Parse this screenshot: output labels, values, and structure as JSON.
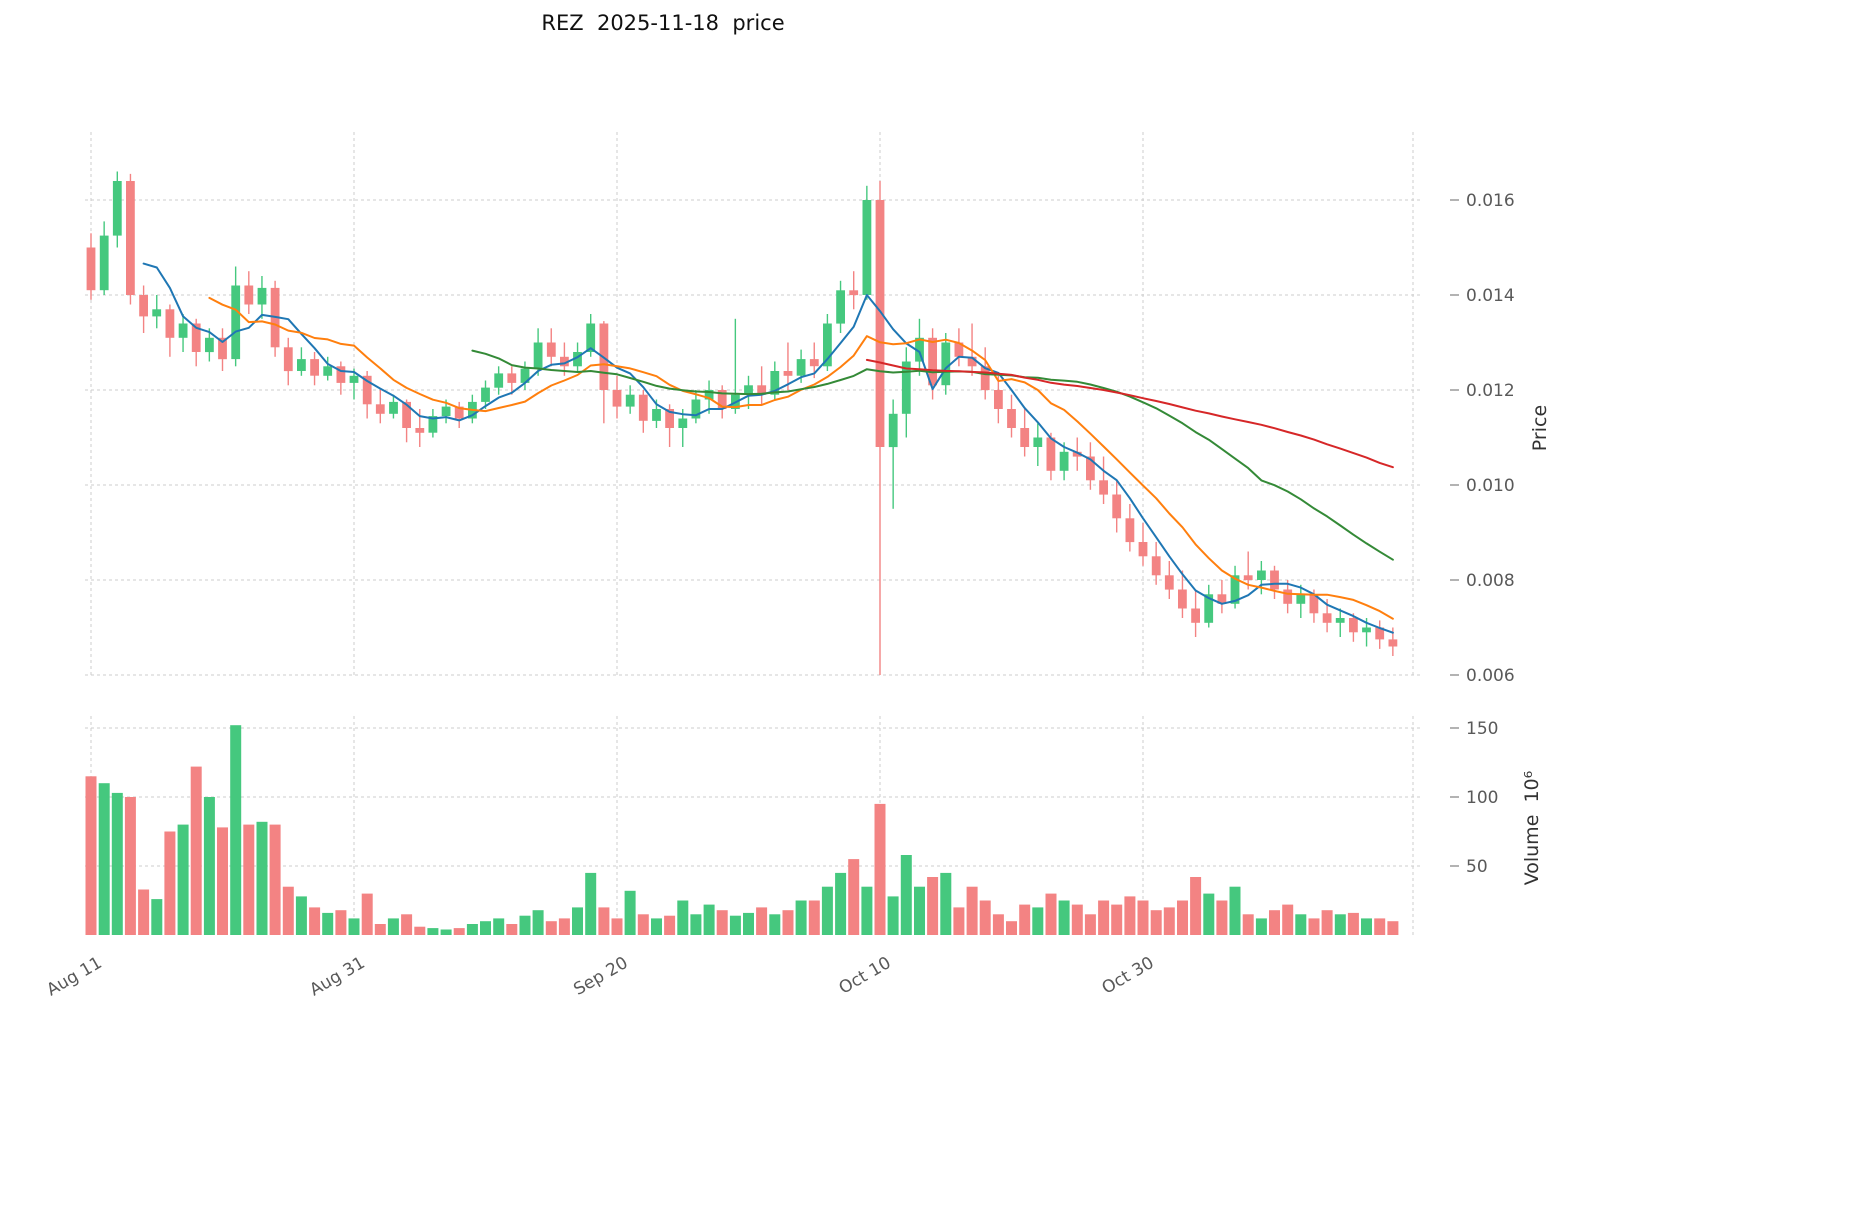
{
  "chart_data": {
    "type": "candlestick",
    "title": "REZ  2025-11-18  price",
    "ylabel": "Price",
    "ylabel_volume": "Volume  10⁶",
    "grid": true,
    "legend": "none",
    "x_tick_labels": [
      "Aug 11",
      "Aug 31",
      "Sep 20",
      "Oct 10",
      "Oct 30"
    ],
    "x_tick_dates": [
      "2025-08-11",
      "2025-08-31",
      "2025-09-20",
      "2025-10-10",
      "2025-10-30"
    ],
    "price_axis": {
      "ticks": [
        0.006,
        0.008,
        0.01,
        0.012,
        0.014,
        0.016
      ],
      "range": [
        0.0055,
        0.0172
      ]
    },
    "volume_axis": {
      "ticks": [
        50,
        100,
        150
      ],
      "unit": "10^6",
      "range": [
        0,
        160
      ]
    },
    "colors": {
      "up": "#45c87e",
      "down": "#f38383",
      "ma5": "#1f77b4",
      "ma10": "#ff7f0e",
      "ma30": "#348a37",
      "ma60": "#d62728",
      "grid": "#cccccc",
      "tick_text": "#595959",
      "title_text": "#111111"
    },
    "moving_averages": [
      {
        "name": "ma5",
        "period": 5
      },
      {
        "name": "ma10",
        "period": 10
      },
      {
        "name": "ma30",
        "period": 30
      },
      {
        "name": "ma60",
        "period": 60
      }
    ],
    "candles": [
      {
        "date": "2025-08-11",
        "open": 0.015,
        "high": 0.0153,
        "low": 0.0139,
        "close": 0.0141,
        "volume": 115
      },
      {
        "date": "2025-08-12",
        "open": 0.0141,
        "high": 0.01555,
        "low": 0.014,
        "close": 0.01525,
        "volume": 110
      },
      {
        "date": "2025-08-13",
        "open": 0.01525,
        "high": 0.0166,
        "low": 0.015,
        "close": 0.0164,
        "volume": 103
      },
      {
        "date": "2025-08-14",
        "open": 0.0164,
        "high": 0.01655,
        "low": 0.0138,
        "close": 0.014,
        "volume": 100
      },
      {
        "date": "2025-08-15",
        "open": 0.014,
        "high": 0.0142,
        "low": 0.0132,
        "close": 0.01355,
        "volume": 33
      },
      {
        "date": "2025-08-16",
        "open": 0.01355,
        "high": 0.014,
        "low": 0.0133,
        "close": 0.0137,
        "volume": 26
      },
      {
        "date": "2025-08-17",
        "open": 0.0137,
        "high": 0.0138,
        "low": 0.0127,
        "close": 0.0131,
        "volume": 75
      },
      {
        "date": "2025-08-18",
        "open": 0.0131,
        "high": 0.0136,
        "low": 0.0128,
        "close": 0.0134,
        "volume": 80
      },
      {
        "date": "2025-08-19",
        "open": 0.0134,
        "high": 0.0135,
        "low": 0.0125,
        "close": 0.0128,
        "volume": 122
      },
      {
        "date": "2025-08-20",
        "open": 0.0128,
        "high": 0.0133,
        "low": 0.0126,
        "close": 0.0131,
        "volume": 100
      },
      {
        "date": "2025-08-21",
        "open": 0.0131,
        "high": 0.0133,
        "low": 0.0124,
        "close": 0.01265,
        "volume": 78
      },
      {
        "date": "2025-08-22",
        "open": 0.01265,
        "high": 0.0146,
        "low": 0.0125,
        "close": 0.0142,
        "volume": 152
      },
      {
        "date": "2025-08-23",
        "open": 0.0142,
        "high": 0.0145,
        "low": 0.0136,
        "close": 0.0138,
        "volume": 80
      },
      {
        "date": "2025-08-24",
        "open": 0.0138,
        "high": 0.0144,
        "low": 0.0135,
        "close": 0.01415,
        "volume": 82
      },
      {
        "date": "2025-08-25",
        "open": 0.01415,
        "high": 0.0143,
        "low": 0.0127,
        "close": 0.0129,
        "volume": 80
      },
      {
        "date": "2025-08-26",
        "open": 0.0129,
        "high": 0.0131,
        "low": 0.0121,
        "close": 0.0124,
        "volume": 35
      },
      {
        "date": "2025-08-27",
        "open": 0.0124,
        "high": 0.0129,
        "low": 0.0123,
        "close": 0.01265,
        "volume": 28
      },
      {
        "date": "2025-08-28",
        "open": 0.01265,
        "high": 0.0128,
        "low": 0.0121,
        "close": 0.0123,
        "volume": 20
      },
      {
        "date": "2025-08-29",
        "open": 0.0123,
        "high": 0.0127,
        "low": 0.0122,
        "close": 0.0125,
        "volume": 16
      },
      {
        "date": "2025-08-30",
        "open": 0.0125,
        "high": 0.0126,
        "low": 0.0119,
        "close": 0.01215,
        "volume": 18
      },
      {
        "date": "2025-08-31",
        "open": 0.01215,
        "high": 0.01245,
        "low": 0.0118,
        "close": 0.0123,
        "volume": 12
      },
      {
        "date": "2025-09-01",
        "open": 0.0123,
        "high": 0.0124,
        "low": 0.0114,
        "close": 0.0117,
        "volume": 30
      },
      {
        "date": "2025-09-02",
        "open": 0.0117,
        "high": 0.012,
        "low": 0.0113,
        "close": 0.0115,
        "volume": 8
      },
      {
        "date": "2025-09-03",
        "open": 0.0115,
        "high": 0.0119,
        "low": 0.0114,
        "close": 0.01175,
        "volume": 12
      },
      {
        "date": "2025-09-04",
        "open": 0.01175,
        "high": 0.0118,
        "low": 0.0109,
        "close": 0.0112,
        "volume": 15
      },
      {
        "date": "2025-09-05",
        "open": 0.0112,
        "high": 0.0116,
        "low": 0.0108,
        "close": 0.0111,
        "volume": 6
      },
      {
        "date": "2025-09-06",
        "open": 0.0111,
        "high": 0.0116,
        "low": 0.011,
        "close": 0.01145,
        "volume": 5
      },
      {
        "date": "2025-09-07",
        "open": 0.01145,
        "high": 0.0118,
        "low": 0.0113,
        "close": 0.01165,
        "volume": 4
      },
      {
        "date": "2025-09-08",
        "open": 0.01165,
        "high": 0.01175,
        "low": 0.0112,
        "close": 0.0114,
        "volume": 5
      },
      {
        "date": "2025-09-09",
        "open": 0.0114,
        "high": 0.0119,
        "low": 0.0113,
        "close": 0.01175,
        "volume": 8
      },
      {
        "date": "2025-09-10",
        "open": 0.01175,
        "high": 0.0122,
        "low": 0.0116,
        "close": 0.01205,
        "volume": 10
      },
      {
        "date": "2025-09-11",
        "open": 0.01205,
        "high": 0.0125,
        "low": 0.0119,
        "close": 0.01235,
        "volume": 12
      },
      {
        "date": "2025-09-12",
        "open": 0.01235,
        "high": 0.0125,
        "low": 0.0119,
        "close": 0.01215,
        "volume": 8
      },
      {
        "date": "2025-09-13",
        "open": 0.01215,
        "high": 0.0126,
        "low": 0.012,
        "close": 0.01245,
        "volume": 14
      },
      {
        "date": "2025-09-14",
        "open": 0.01245,
        "high": 0.0133,
        "low": 0.0123,
        "close": 0.013,
        "volume": 18
      },
      {
        "date": "2025-09-15",
        "open": 0.013,
        "high": 0.0133,
        "low": 0.0125,
        "close": 0.0127,
        "volume": 10
      },
      {
        "date": "2025-09-16",
        "open": 0.0127,
        "high": 0.013,
        "low": 0.0123,
        "close": 0.0125,
        "volume": 12
      },
      {
        "date": "2025-09-17",
        "open": 0.0125,
        "high": 0.013,
        "low": 0.0124,
        "close": 0.0128,
        "volume": 20
      },
      {
        "date": "2025-09-18",
        "open": 0.0128,
        "high": 0.0136,
        "low": 0.0127,
        "close": 0.0134,
        "volume": 45
      },
      {
        "date": "2025-09-19",
        "open": 0.0134,
        "high": 0.01345,
        "low": 0.0113,
        "close": 0.012,
        "volume": 20
      },
      {
        "date": "2025-09-20",
        "open": 0.012,
        "high": 0.0123,
        "low": 0.0114,
        "close": 0.01165,
        "volume": 12
      },
      {
        "date": "2025-09-21",
        "open": 0.01165,
        "high": 0.0121,
        "low": 0.0115,
        "close": 0.0119,
        "volume": 32
      },
      {
        "date": "2025-09-22",
        "open": 0.0119,
        "high": 0.012,
        "low": 0.0111,
        "close": 0.01135,
        "volume": 15
      },
      {
        "date": "2025-09-23",
        "open": 0.01135,
        "high": 0.0118,
        "low": 0.0112,
        "close": 0.0116,
        "volume": 12
      },
      {
        "date": "2025-09-24",
        "open": 0.0116,
        "high": 0.0117,
        "low": 0.0108,
        "close": 0.0112,
        "volume": 14
      },
      {
        "date": "2025-09-25",
        "open": 0.0112,
        "high": 0.0116,
        "low": 0.0108,
        "close": 0.0114,
        "volume": 25
      },
      {
        "date": "2025-09-26",
        "open": 0.0114,
        "high": 0.012,
        "low": 0.0113,
        "close": 0.0118,
        "volume": 15
      },
      {
        "date": "2025-09-27",
        "open": 0.0118,
        "high": 0.0122,
        "low": 0.0115,
        "close": 0.012,
        "volume": 22
      },
      {
        "date": "2025-09-28",
        "open": 0.012,
        "high": 0.0121,
        "low": 0.0114,
        "close": 0.0116,
        "volume": 18
      },
      {
        "date": "2025-09-29",
        "open": 0.0116,
        "high": 0.0135,
        "low": 0.0115,
        "close": 0.0119,
        "volume": 14
      },
      {
        "date": "2025-09-30",
        "open": 0.0119,
        "high": 0.0123,
        "low": 0.0116,
        "close": 0.0121,
        "volume": 16
      },
      {
        "date": "2025-10-01",
        "open": 0.0121,
        "high": 0.0125,
        "low": 0.0117,
        "close": 0.0119,
        "volume": 20
      },
      {
        "date": "2025-10-02",
        "open": 0.0119,
        "high": 0.0126,
        "low": 0.0118,
        "close": 0.0124,
        "volume": 15
      },
      {
        "date": "2025-10-03",
        "open": 0.0124,
        "high": 0.013,
        "low": 0.012,
        "close": 0.0123,
        "volume": 18
      },
      {
        "date": "2025-10-04",
        "open": 0.0123,
        "high": 0.01285,
        "low": 0.01215,
        "close": 0.01265,
        "volume": 25
      },
      {
        "date": "2025-10-05",
        "open": 0.01265,
        "high": 0.013,
        "low": 0.01225,
        "close": 0.0125,
        "volume": 25
      },
      {
        "date": "2025-10-06",
        "open": 0.0125,
        "high": 0.0136,
        "low": 0.0124,
        "close": 0.0134,
        "volume": 35
      },
      {
        "date": "2025-10-07",
        "open": 0.0134,
        "high": 0.0143,
        "low": 0.0132,
        "close": 0.0141,
        "volume": 45
      },
      {
        "date": "2025-10-08",
        "open": 0.0141,
        "high": 0.0145,
        "low": 0.0137,
        "close": 0.014,
        "volume": 55
      },
      {
        "date": "2025-10-09",
        "open": 0.014,
        "high": 0.0163,
        "low": 0.0139,
        "close": 0.016,
        "volume": 35
      },
      {
        "date": "2025-10-10",
        "open": 0.016,
        "high": 0.0164,
        "low": 0.006,
        "close": 0.0108,
        "volume": 95
      },
      {
        "date": "2025-10-11",
        "open": 0.0108,
        "high": 0.0118,
        "low": 0.0095,
        "close": 0.0115,
        "volume": 28
      },
      {
        "date": "2025-10-12",
        "open": 0.0115,
        "high": 0.0129,
        "low": 0.011,
        "close": 0.0126,
        "volume": 58
      },
      {
        "date": "2025-10-13",
        "open": 0.0126,
        "high": 0.0135,
        "low": 0.0123,
        "close": 0.0131,
        "volume": 35
      },
      {
        "date": "2025-10-14",
        "open": 0.0131,
        "high": 0.0133,
        "low": 0.0118,
        "close": 0.0121,
        "volume": 42
      },
      {
        "date": "2025-10-15",
        "open": 0.0121,
        "high": 0.0132,
        "low": 0.0119,
        "close": 0.013,
        "volume": 45
      },
      {
        "date": "2025-10-16",
        "open": 0.013,
        "high": 0.0133,
        "low": 0.0125,
        "close": 0.0127,
        "volume": 20
      },
      {
        "date": "2025-10-17",
        "open": 0.0127,
        "high": 0.0134,
        "low": 0.0123,
        "close": 0.0125,
        "volume": 35
      },
      {
        "date": "2025-10-18",
        "open": 0.0125,
        "high": 0.0129,
        "low": 0.0118,
        "close": 0.012,
        "volume": 25
      },
      {
        "date": "2025-10-19",
        "open": 0.012,
        "high": 0.0123,
        "low": 0.0113,
        "close": 0.0116,
        "volume": 15
      },
      {
        "date": "2025-10-20",
        "open": 0.0116,
        "high": 0.0119,
        "low": 0.011,
        "close": 0.0112,
        "volume": 10
      },
      {
        "date": "2025-10-21",
        "open": 0.0112,
        "high": 0.0116,
        "low": 0.0106,
        "close": 0.0108,
        "volume": 22
      },
      {
        "date": "2025-10-22",
        "open": 0.0108,
        "high": 0.0113,
        "low": 0.0104,
        "close": 0.011,
        "volume": 20
      },
      {
        "date": "2025-10-23",
        "open": 0.011,
        "high": 0.0111,
        "low": 0.0101,
        "close": 0.0103,
        "volume": 30
      },
      {
        "date": "2025-10-24",
        "open": 0.0103,
        "high": 0.0109,
        "low": 0.0101,
        "close": 0.0107,
        "volume": 25
      },
      {
        "date": "2025-10-25",
        "open": 0.0107,
        "high": 0.011,
        "low": 0.0103,
        "close": 0.0106,
        "volume": 22
      },
      {
        "date": "2025-10-26",
        "open": 0.0106,
        "high": 0.0109,
        "low": 0.0099,
        "close": 0.0101,
        "volume": 15
      },
      {
        "date": "2025-10-27",
        "open": 0.0101,
        "high": 0.0106,
        "low": 0.0096,
        "close": 0.0098,
        "volume": 25
      },
      {
        "date": "2025-10-28",
        "open": 0.0098,
        "high": 0.0101,
        "low": 0.009,
        "close": 0.0093,
        "volume": 22
      },
      {
        "date": "2025-10-29",
        "open": 0.0093,
        "high": 0.0096,
        "low": 0.0086,
        "close": 0.0088,
        "volume": 28
      },
      {
        "date": "2025-10-30",
        "open": 0.0088,
        "high": 0.0092,
        "low": 0.0083,
        "close": 0.0085,
        "volume": 25
      },
      {
        "date": "2025-10-31",
        "open": 0.0085,
        "high": 0.0088,
        "low": 0.0079,
        "close": 0.0081,
        "volume": 18
      },
      {
        "date": "2025-11-01",
        "open": 0.0081,
        "high": 0.0084,
        "low": 0.0076,
        "close": 0.0078,
        "volume": 20
      },
      {
        "date": "2025-11-02",
        "open": 0.0078,
        "high": 0.0082,
        "low": 0.0072,
        "close": 0.0074,
        "volume": 25
      },
      {
        "date": "2025-11-03",
        "open": 0.0074,
        "high": 0.0078,
        "low": 0.0068,
        "close": 0.0071,
        "volume": 42
      },
      {
        "date": "2025-11-04",
        "open": 0.0071,
        "high": 0.0079,
        "low": 0.007,
        "close": 0.0077,
        "volume": 30
      },
      {
        "date": "2025-11-05",
        "open": 0.0077,
        "high": 0.008,
        "low": 0.0073,
        "close": 0.0075,
        "volume": 25
      },
      {
        "date": "2025-11-06",
        "open": 0.0075,
        "high": 0.0083,
        "low": 0.0074,
        "close": 0.0081,
        "volume": 35
      },
      {
        "date": "2025-11-07",
        "open": 0.0081,
        "high": 0.0086,
        "low": 0.0078,
        "close": 0.008,
        "volume": 15
      },
      {
        "date": "2025-11-08",
        "open": 0.008,
        "high": 0.0084,
        "low": 0.0077,
        "close": 0.0082,
        "volume": 12
      },
      {
        "date": "2025-11-09",
        "open": 0.0082,
        "high": 0.0083,
        "low": 0.0076,
        "close": 0.0078,
        "volume": 18
      },
      {
        "date": "2025-11-10",
        "open": 0.0078,
        "high": 0.008,
        "low": 0.0073,
        "close": 0.0075,
        "volume": 22
      },
      {
        "date": "2025-11-11",
        "open": 0.0075,
        "high": 0.0079,
        "low": 0.0072,
        "close": 0.0077,
        "volume": 15
      },
      {
        "date": "2025-11-12",
        "open": 0.0077,
        "high": 0.0078,
        "low": 0.0071,
        "close": 0.0073,
        "volume": 12
      },
      {
        "date": "2025-11-13",
        "open": 0.0073,
        "high": 0.0076,
        "low": 0.0069,
        "close": 0.0071,
        "volume": 18
      },
      {
        "date": "2025-11-14",
        "open": 0.0071,
        "high": 0.0074,
        "low": 0.0068,
        "close": 0.0072,
        "volume": 15
      },
      {
        "date": "2025-11-15",
        "open": 0.0072,
        "high": 0.0073,
        "low": 0.0067,
        "close": 0.0069,
        "volume": 16
      },
      {
        "date": "2025-11-16",
        "open": 0.0069,
        "high": 0.0072,
        "low": 0.0066,
        "close": 0.007,
        "volume": 12
      },
      {
        "date": "2025-11-17",
        "open": 0.007,
        "high": 0.00715,
        "low": 0.00655,
        "close": 0.00675,
        "volume": 12
      },
      {
        "date": "2025-11-18",
        "open": 0.00675,
        "high": 0.007,
        "low": 0.0064,
        "close": 0.0066,
        "volume": 10
      }
    ]
  }
}
